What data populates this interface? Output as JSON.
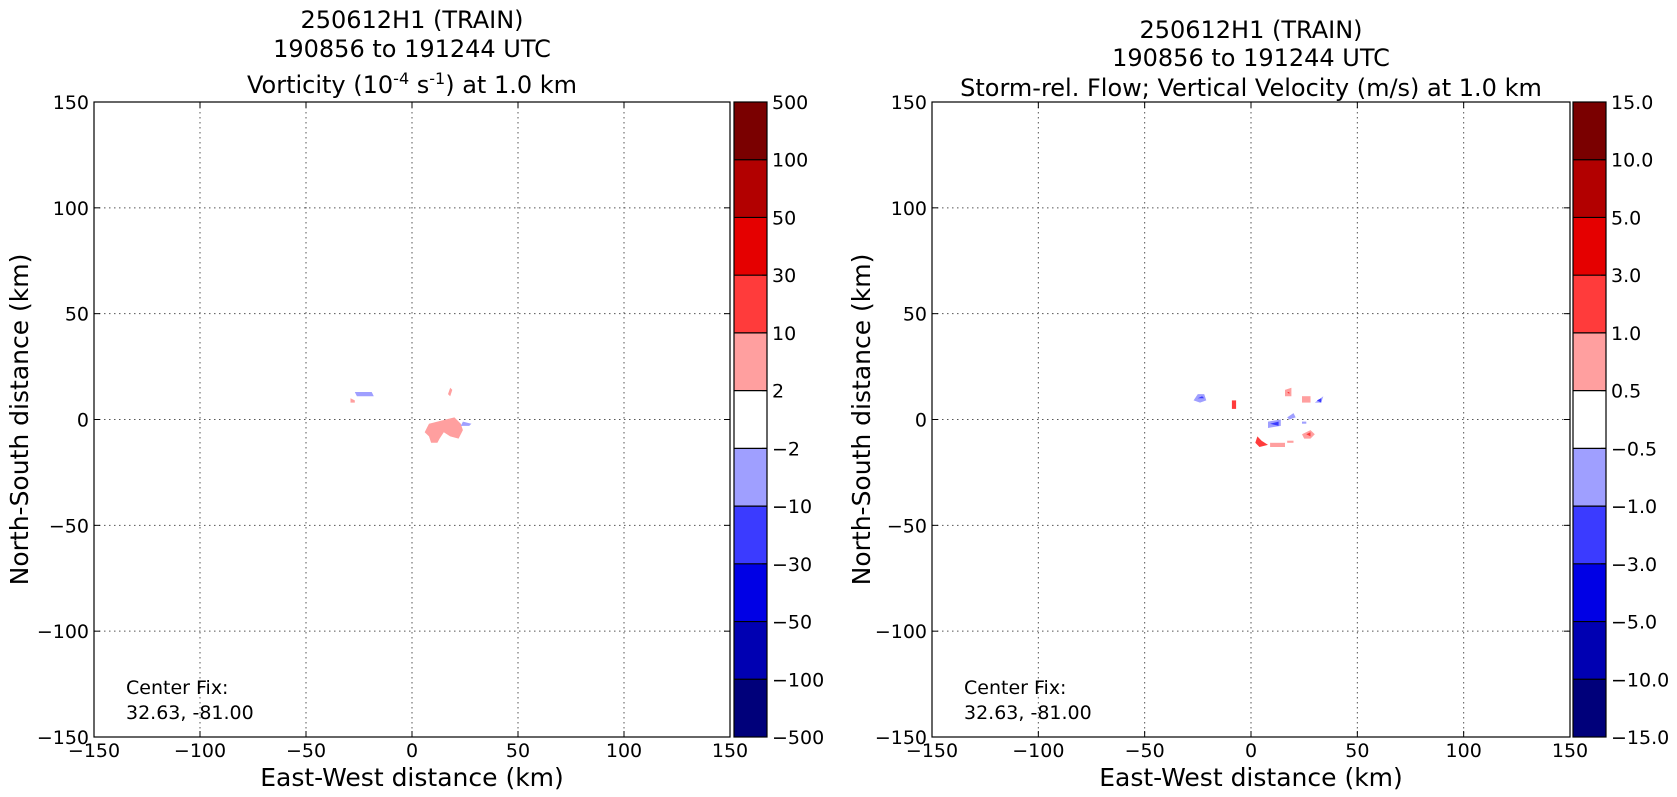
{
  "chart_data": [
    {
      "type": "heatmap",
      "title_lines": [
        "250612H1 (TRAIN)",
        "190856 to 191244 UTC"
      ],
      "subtitle": {
        "pre": "Vorticity (10",
        "sup1": "-4",
        "mid": " s",
        "sup2": "-1",
        "post": ") at 1.0 km"
      },
      "xlabel": "East-West distance (km)",
      "ylabel": "North-South distance (km)",
      "xlim": [
        -150,
        150
      ],
      "ylim": [
        -150,
        150
      ],
      "xticks": [
        -150,
        -100,
        -50,
        0,
        50,
        100,
        150
      ],
      "yticks": [
        -150,
        -100,
        -50,
        0,
        50,
        100,
        150
      ],
      "xtick_labels": [
        "−150",
        "−100",
        "−50",
        "0",
        "50",
        "100",
        "150"
      ],
      "ytick_labels": [
        "−150",
        "−100",
        "−50",
        "0",
        "50",
        "100",
        "150"
      ],
      "grid": true,
      "annotation": [
        "Center Fix:",
        "32.63, -81.00"
      ],
      "colorbar": {
        "tick_labels": [
          "500",
          "100",
          "50",
          "30",
          "10",
          "2",
          "−2",
          "−10",
          "−30",
          "−50",
          "−100",
          "−500"
        ],
        "colors": [
          "#7a0000",
          "#b20000",
          "#e50000",
          "#ff3b3b",
          "#ff9f9f",
          "#ffffff",
          "#9f9fff",
          "#3b3bff",
          "#0000e5",
          "#0000b2",
          "#00007a"
        ]
      },
      "features": [
        {
          "label": "2 to 10",
          "color": "#ff9f9f",
          "points": [
            [
              8,
              -2
            ],
            [
              12,
              -1
            ],
            [
              16,
              0
            ],
            [
              20,
              1
            ],
            [
              23,
              -2
            ],
            [
              24,
              -5
            ],
            [
              22,
              -9
            ],
            [
              18,
              -8
            ],
            [
              15,
              -6
            ],
            [
              13,
              -9
            ],
            [
              12,
              -11
            ],
            [
              9,
              -11
            ],
            [
              8,
              -8
            ],
            [
              6,
              -6
            ],
            [
              7,
              -4
            ]
          ]
        },
        {
          "label": "2 to 10",
          "color": "#ff9f9f",
          "points": [
            [
              18,
              11
            ],
            [
              19,
              14
            ],
            [
              18,
              15
            ],
            [
              17,
              12
            ]
          ]
        },
        {
          "label": "2 to 10",
          "color": "#ff9f9f",
          "points": [
            [
              -29,
              10
            ],
            [
              -27,
              9
            ],
            [
              -27,
              8
            ],
            [
              -29,
              8
            ]
          ]
        },
        {
          "label": "-10 to -2",
          "color": "#9f9fff",
          "points": [
            [
              -27,
              13
            ],
            [
              -19,
              13
            ],
            [
              -18,
              11
            ],
            [
              -26,
              11
            ]
          ]
        },
        {
          "label": "-10 to -2",
          "color": "#9f9fff",
          "points": [
            [
              24,
              -1
            ],
            [
              28,
              -2
            ],
            [
              27,
              -3
            ],
            [
              23,
              -3
            ]
          ]
        }
      ]
    },
    {
      "type": "heatmap",
      "title_lines": [
        "250612H1 (TRAIN)",
        "190856 to 191244 UTC"
      ],
      "subtitle": {
        "pre": "Storm-rel. Flow; Vertical Velocity (m/s) at 1.0 km",
        "sup1": "",
        "mid": "",
        "sup2": "",
        "post": ""
      },
      "xlabel": "East-West distance (km)",
      "ylabel": "North-South distance (km)",
      "xlim": [
        -150,
        150
      ],
      "ylim": [
        -150,
        150
      ],
      "xticks": [
        -150,
        -100,
        -50,
        0,
        50,
        100,
        150
      ],
      "yticks": [
        -150,
        -100,
        -50,
        0,
        50,
        100,
        150
      ],
      "xtick_labels": [
        "−150",
        "−100",
        "−50",
        "0",
        "50",
        "100",
        "150"
      ],
      "ytick_labels": [
        "−150",
        "−100",
        "−50",
        "0",
        "50",
        "100",
        "150"
      ],
      "grid": true,
      "annotation": [
        "Center Fix:",
        "32.63, -81.00"
      ],
      "colorbar": {
        "tick_labels": [
          "15.0",
          "10.0",
          "5.0",
          "3.0",
          "1.0",
          "0.5",
          "−0.5",
          "−1.0",
          "−3.0",
          "−5.0",
          "−10.0",
          "−15.0"
        ],
        "colors": [
          "#7a0000",
          "#b20000",
          "#e50000",
          "#ff3b3b",
          "#ff9f9f",
          "#ffffff",
          "#9f9fff",
          "#3b3bff",
          "#0000e5",
          "#0000b2",
          "#00007a"
        ]
      },
      "features": [
        {
          "label": "-1.0 to -0.5",
          "color": "#9f9fff",
          "points": [
            [
              -27,
              9
            ],
            [
              -25,
              12
            ],
            [
              -22,
              12
            ],
            [
              -21,
              9
            ],
            [
              -24,
              8
            ]
          ]
        },
        {
          "label": "-3.0 to -1.0",
          "color": "#3b3bff",
          "points": [
            [
              -25,
              10
            ],
            [
              -23,
              11
            ],
            [
              -22,
              10
            ]
          ]
        },
        {
          "label": "1.0 to 3.0",
          "color": "#ff3b3b",
          "points": [
            [
              -9,
              9
            ],
            [
              -7,
              9
            ],
            [
              -7,
              5
            ],
            [
              -9,
              5
            ]
          ]
        },
        {
          "label": "0.5 to 1.0",
          "color": "#ff9f9f",
          "points": [
            [
              16,
              14
            ],
            [
              19,
              15
            ],
            [
              19,
              11
            ],
            [
              16,
              11
            ]
          ]
        },
        {
          "label": "1.0 to 3.0",
          "color": "#ff3b3b",
          "points": [
            [
              17,
              13
            ],
            [
              18,
              13
            ],
            [
              18,
              12
            ]
          ]
        },
        {
          "label": "0.5 to 1.0",
          "color": "#ff9f9f",
          "points": [
            [
              24,
              11
            ],
            [
              28,
              11
            ],
            [
              28,
              8
            ],
            [
              24,
              8
            ]
          ]
        },
        {
          "label": "-1.0 to -0.5",
          "color": "#9f9fff",
          "points": [
            [
              30,
              8
            ],
            [
              34,
              11
            ],
            [
              33,
              8
            ]
          ]
        },
        {
          "label": "-3.0 to -1.0",
          "color": "#3b3bff",
          "points": [
            [
              31,
              9
            ],
            [
              33,
              10
            ],
            [
              33,
              8
            ]
          ]
        },
        {
          "label": "-1.0 to -0.5",
          "color": "#9f9fff",
          "points": [
            [
              17,
              1
            ],
            [
              20,
              3
            ],
            [
              21,
              1
            ],
            [
              18,
              0
            ]
          ]
        },
        {
          "label": "-1.0 to -0.5",
          "color": "#9f9fff",
          "points": [
            [
              8,
              -1
            ],
            [
              14,
              0
            ],
            [
              14,
              -3
            ],
            [
              8,
              -4
            ]
          ]
        },
        {
          "label": "-3.0 to -1.0",
          "color": "#3b3bff",
          "points": [
            [
              9,
              -2
            ],
            [
              13,
              -1
            ],
            [
              13,
              -3
            ]
          ]
        },
        {
          "label": "-1.0 to -0.5",
          "color": "#9f9fff",
          "points": [
            [
              24,
              -1
            ],
            [
              26,
              -1
            ],
            [
              26,
              -2
            ],
            [
              24,
              -2
            ]
          ]
        },
        {
          "label": "0.5 to 1.0",
          "color": "#ff9f9f",
          "points": [
            [
              24,
              -7
            ],
            [
              28,
              -5
            ],
            [
              30,
              -7
            ],
            [
              28,
              -9
            ],
            [
              25,
              -9
            ]
          ]
        },
        {
          "label": "1.0 to 3.0",
          "color": "#ff3b3b",
          "points": [
            [
              26,
              -7
            ],
            [
              28,
              -6
            ],
            [
              28,
              -8
            ]
          ]
        },
        {
          "label": "1.0 to 3.0",
          "color": "#ff3b3b",
          "points": [
            [
              3,
              -8
            ],
            [
              5,
              -10
            ],
            [
              8,
              -12
            ],
            [
              4,
              -13
            ],
            [
              2,
              -11
            ]
          ]
        },
        {
          "label": "0.5 to 1.0",
          "color": "#ff9f9f",
          "points": [
            [
              9,
              -11
            ],
            [
              16,
              -11
            ],
            [
              16,
              -13
            ],
            [
              9,
              -13
            ]
          ]
        },
        {
          "label": "0.5 to 1.0",
          "color": "#ff9f9f",
          "points": [
            [
              17,
              -10
            ],
            [
              20,
              -10
            ],
            [
              20,
              -11
            ],
            [
              17,
              -11
            ]
          ]
        }
      ]
    }
  ]
}
